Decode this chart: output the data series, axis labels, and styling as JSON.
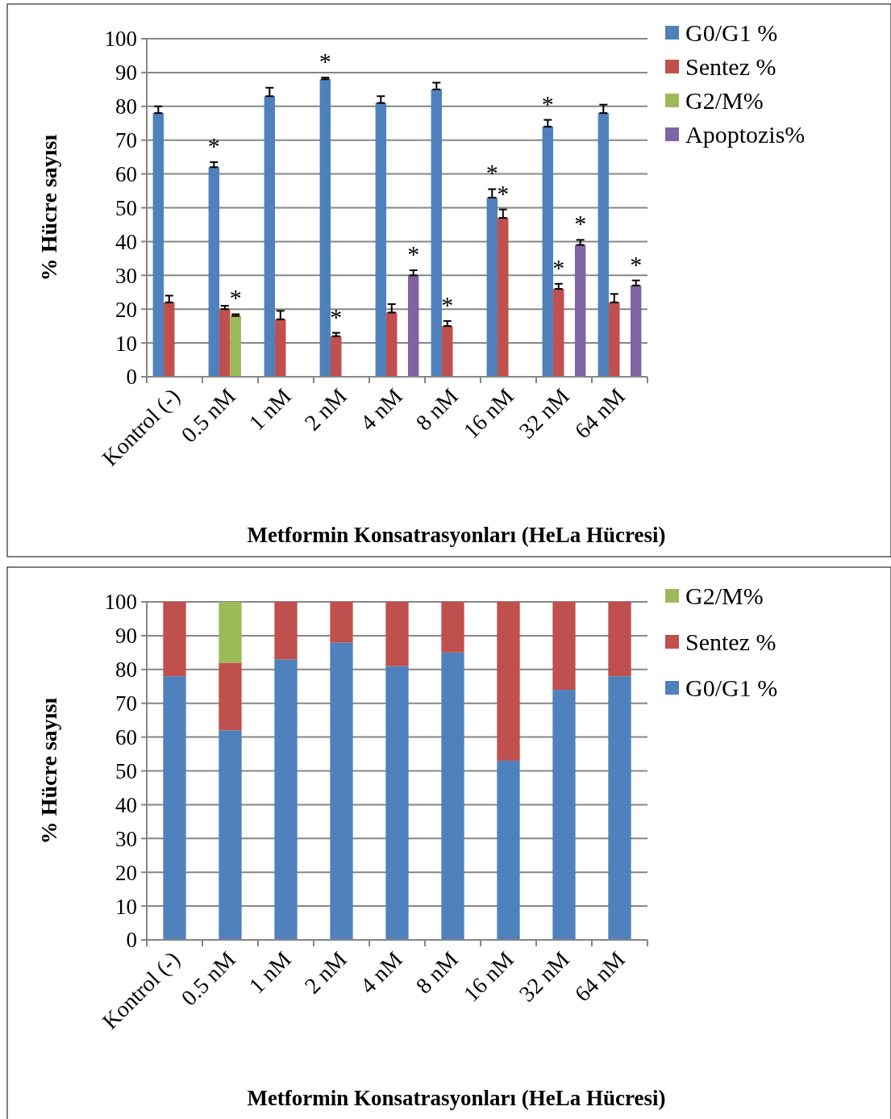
{
  "chart_data": [
    {
      "type": "bar",
      "xlabel": "Metformin Konsatrasyonları (HeLa Hücresi)",
      "ylabel": "% Hücre sayısı",
      "categories": [
        "Kontrol (-)",
        "0.5 nM",
        "1 nM",
        "2 nM",
        "4 nM",
        "8 nM",
        "16 nM",
        "32 nM",
        "64 nM"
      ],
      "series": [
        {
          "name": "G0/G1 %",
          "color": "#4f81bd",
          "values": [
            78,
            62,
            83,
            88,
            81,
            85,
            53,
            74,
            78
          ],
          "errors": [
            [
              78,
              80
            ],
            [
              62,
              63.5
            ],
            [
              83,
              85.5
            ],
            [
              88,
              88.5
            ],
            [
              81,
              83
            ],
            [
              85,
              87
            ],
            [
              53,
              55.5
            ],
            [
              74,
              76
            ],
            [
              78,
              80.5
            ]
          ],
          "value_labels": [
            null,
            "*",
            null,
            "*",
            null,
            null,
            "*",
            "*",
            null
          ]
        },
        {
          "name": "Sentez %",
          "color": "#c0504d",
          "values": [
            22,
            20,
            17,
            12,
            19,
            15,
            47,
            26,
            22
          ],
          "errors": [
            [
              22,
              24
            ],
            [
              20,
              21
            ],
            [
              17,
              19.5
            ],
            [
              12,
              13
            ],
            [
              19,
              21.5
            ],
            [
              15,
              16.5
            ],
            [
              47,
              49.5
            ],
            [
              26,
              27.5
            ],
            [
              22,
              24.5
            ]
          ],
          "value_labels": [
            null,
            null,
            null,
            "*",
            null,
            "*",
            "*",
            "*",
            null
          ]
        },
        {
          "name": "G2/M%",
          "color": "#9bbb59",
          "values": [
            null,
            18,
            null,
            null,
            null,
            null,
            null,
            null,
            null
          ],
          "errors": [
            null,
            [
              18,
              18.5
            ],
            null,
            null,
            null,
            null,
            null,
            null,
            null
          ],
          "value_labels": [
            null,
            "*",
            null,
            null,
            null,
            null,
            null,
            null,
            null
          ]
        },
        {
          "name": "Apoptozis%",
          "color": "#8064a2",
          "values": [
            null,
            null,
            null,
            null,
            30,
            null,
            null,
            39,
            27
          ],
          "errors": [
            null,
            null,
            null,
            null,
            [
              30,
              31.5
            ],
            null,
            null,
            [
              39,
              40.5
            ],
            [
              27,
              28.5
            ]
          ],
          "value_labels": [
            null,
            null,
            null,
            null,
            "*",
            null,
            null,
            "*",
            "*"
          ]
        }
      ],
      "ylim": [
        0,
        100
      ],
      "yticks": [
        0,
        10,
        20,
        30,
        40,
        50,
        60,
        70,
        80,
        90,
        100
      ],
      "grid": "y",
      "legend": "top right"
    },
    {
      "type": "bar",
      "stacked": true,
      "xlabel": "Metformin Konsatrasyonları (HeLa Hücresi)",
      "ylabel": "% Hücre sayısı",
      "categories": [
        "Kontrol (-)",
        "0.5 nM",
        "1 nM",
        "2 nM",
        "4 nM",
        "8 nM",
        "16 nM",
        "32 nM",
        "64 nM"
      ],
      "series": [
        {
          "name": "G0/G1 %",
          "color": "#4f81bd",
          "values": [
            78,
            62,
            83,
            88,
            81,
            85,
            53,
            74,
            78
          ]
        },
        {
          "name": "Sentez %",
          "color": "#c0504d",
          "values": [
            22,
            20,
            17,
            12,
            19,
            15,
            47,
            26,
            22
          ]
        },
        {
          "name": "G2/M%",
          "color": "#9bbb59",
          "values": [
            null,
            18,
            null,
            null,
            null,
            null,
            null,
            null,
            null
          ]
        }
      ],
      "ylim": [
        0,
        100
      ],
      "yticks": [
        0,
        10,
        20,
        30,
        40,
        50,
        60,
        70,
        80,
        90,
        100
      ],
      "grid": "y",
      "legend": "top right"
    }
  ]
}
